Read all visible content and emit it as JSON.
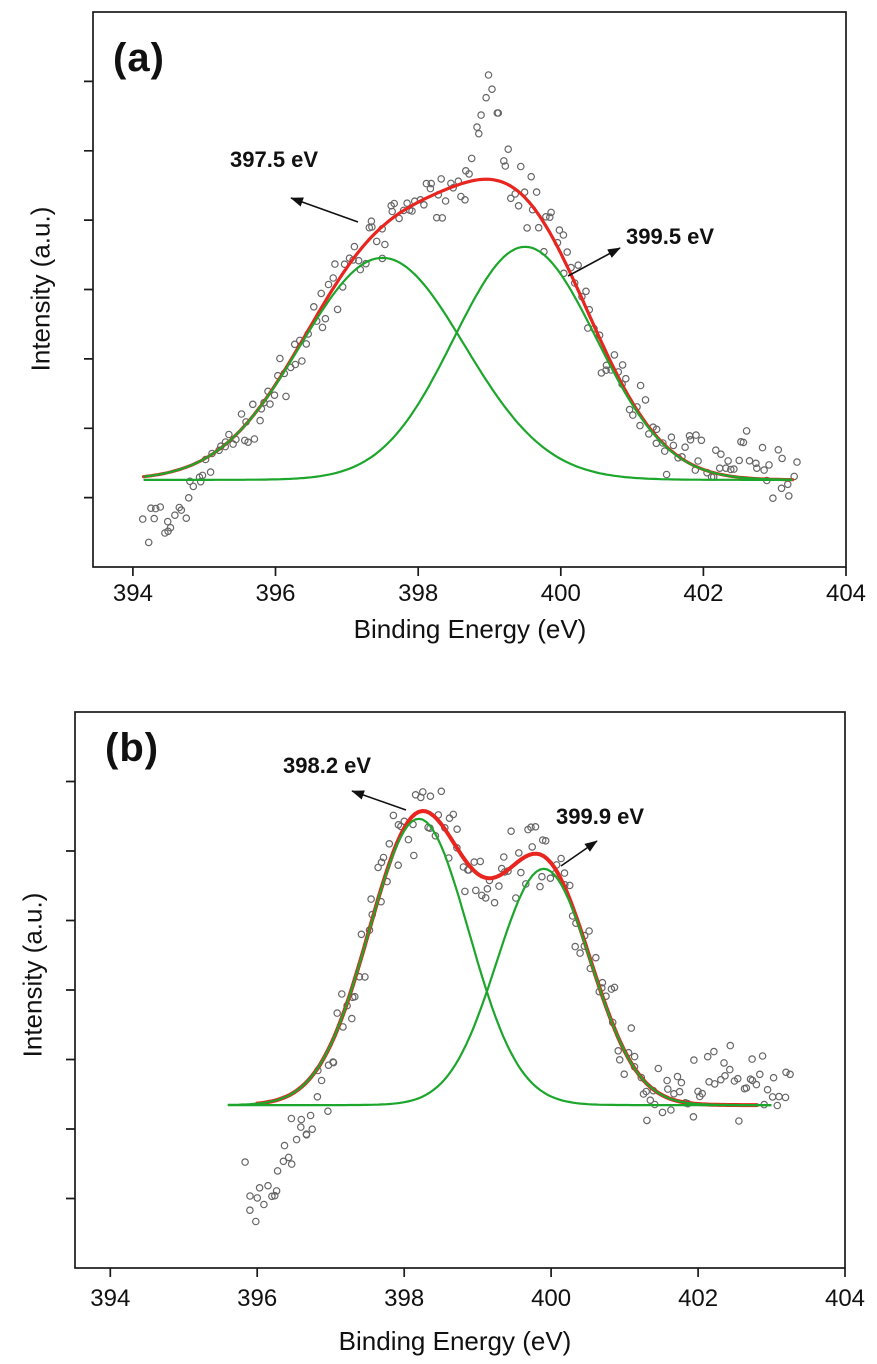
{
  "figure_background": "#ffffff",
  "chart_data": [
    {
      "id": "a",
      "type": "scatter",
      "panel_label": "(a)",
      "xlabel": "Binding Energy (eV)",
      "ylabel": "Intensity (a.u.)",
      "x_ticks": [
        394,
        396,
        398,
        400,
        402,
        404
      ],
      "x_range": [
        393.44,
        404
      ],
      "y_axis_note": "unlabeled intensity, arbitrary units",
      "legend": "off",
      "grid": "off",
      "baseline": 0.157,
      "curve_x_range": [
        394.15,
        403.25
      ],
      "envelope_x_range": [
        394.15,
        403.25
      ],
      "colors": {
        "envelope": "#E8251E",
        "components": "#1DA62C",
        "scatter": "#666666",
        "axis": "#1a1a1a",
        "text": "#111111"
      },
      "peaks": [
        {
          "label": "397.5 eV",
          "center": 397.5,
          "sigma": 1.15,
          "amplitude": 0.4
        },
        {
          "label": "399.5 eV",
          "center": 399.5,
          "sigma": 1.0,
          "amplitude": 0.42
        }
      ],
      "scatter": {
        "x_start": 394.15,
        "x_end": 403.3,
        "count": 205,
        "noise": 0.035,
        "seed": 12,
        "extras": [
          {
            "center": 399.0,
            "sigma": 0.14,
            "amplitude": 0.17
          },
          {
            "center": 394.4,
            "sigma": 0.3,
            "amplitude": -0.08
          },
          {
            "center": 402.5,
            "sigma": 0.35,
            "amplitude": 0.05
          }
        ]
      }
    },
    {
      "id": "b",
      "type": "scatter",
      "panel_label": "(b)",
      "xlabel": "Binding Energy (eV)",
      "ylabel": "Intensity (a.u.)",
      "x_ticks": [
        394,
        396,
        398,
        400,
        402,
        404
      ],
      "x_range": [
        393.52,
        404
      ],
      "y_axis_note": "unlabeled intensity, arbitrary units",
      "legend": "off",
      "grid": "off",
      "baseline": 0.293,
      "curve_x_range": [
        395.6,
        403.0
      ],
      "envelope_x_range": [
        396.0,
        402.8
      ],
      "colors": {
        "envelope": "#E8251E",
        "components": "#1DA62C",
        "scatter": "#666666",
        "axis": "#1a1a1a",
        "text": "#111111"
      },
      "peaks": [
        {
          "label": "398.2 eV",
          "center": 398.2,
          "sigma": 0.68,
          "amplitude": 0.515
        },
        {
          "label": "399.9 eV",
          "center": 399.9,
          "sigma": 0.64,
          "amplitude": 0.425
        }
      ],
      "scatter": {
        "x_start": 395.85,
        "x_end": 403.25,
        "count": 185,
        "noise": 0.045,
        "seed": 99,
        "extras": [
          {
            "center": 396.05,
            "sigma": 0.3,
            "amplitude": -0.17
          },
          {
            "center": 396.75,
            "sigma": 0.22,
            "amplitude": -0.07
          },
          {
            "center": 402.6,
            "sigma": 0.55,
            "amplitude": 0.05
          }
        ]
      }
    }
  ]
}
